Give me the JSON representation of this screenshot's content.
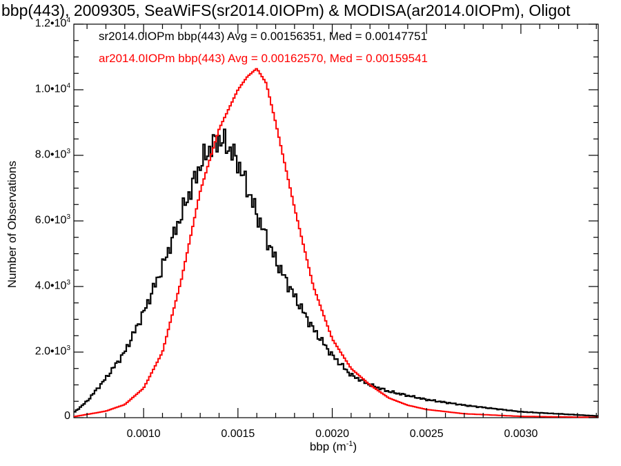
{
  "chart_data": {
    "type": "line",
    "title": "bbp(443), 2009305, SeaWiFS(sr2014.0IOPm) & MODISA(ar2014.0IOPm), Oligot",
    "xlabel_text": "bbp (m",
    "xlabel_sup": "-1",
    "xlabel_close": ")",
    "ylabel": "Number of Observations",
    "xlim": [
      0.00063,
      0.00341
    ],
    "ylim": [
      0,
      12000
    ],
    "grid": false,
    "legend_placement": "top-left",
    "x_ticks": [
      "0.0010",
      "0.0015",
      "0.0020",
      "0.0025",
      "0.0030"
    ],
    "x_tick_values": [
      0.001,
      0.0015,
      0.002,
      0.0025,
      0.003
    ],
    "y_ticks": [
      {
        "value": 0,
        "base": "0",
        "exp": ""
      },
      {
        "value": 2000,
        "base": "2.0•10",
        "exp": "3"
      },
      {
        "value": 4000,
        "base": "4.0•10",
        "exp": "3"
      },
      {
        "value": 6000,
        "base": "6.0•10",
        "exp": "3"
      },
      {
        "value": 8000,
        "base": "8.0•10",
        "exp": "3"
      },
      {
        "value": 10000,
        "base": "1.0•10",
        "exp": "4"
      },
      {
        "value": 12000,
        "base": "1.2•10",
        "exp": "4"
      }
    ],
    "series": [
      {
        "name": "sr2014.0IOPm bbp(443) Avg = 0.00156351, Med = 0.00147751",
        "color": "#000000",
        "x": [
          0.00063,
          0.0007,
          0.0008,
          0.0009,
          0.001,
          0.0011,
          0.0012,
          0.0013,
          0.00135,
          0.0014,
          0.00145,
          0.0015,
          0.0016,
          0.0017,
          0.0018,
          0.0019,
          0.002,
          0.0021,
          0.0022,
          0.0023,
          0.0025,
          0.0027,
          0.003,
          0.00341
        ],
        "values": [
          150,
          500,
          1200,
          2000,
          3200,
          4600,
          6200,
          7700,
          8200,
          8500,
          8250,
          7800,
          6200,
          4800,
          3700,
          2700,
          1900,
          1300,
          1000,
          800,
          550,
          380,
          180,
          50
        ]
      },
      {
        "name": "ar2014.0IOPm bbp(443) Avg = 0.00162570, Med = 0.00159541",
        "color": "#ff0000",
        "x": [
          0.00063,
          0.0008,
          0.0009,
          0.001,
          0.0011,
          0.0012,
          0.0013,
          0.0014,
          0.0015,
          0.00155,
          0.0016,
          0.00165,
          0.0017,
          0.0018,
          0.0019,
          0.002,
          0.0021,
          0.0022,
          0.0023,
          0.0024,
          0.0025,
          0.0027,
          0.003,
          0.00341
        ],
        "values": [
          30,
          200,
          400,
          900,
          2000,
          4200,
          6900,
          8800,
          10000,
          10400,
          10650,
          10200,
          9000,
          6400,
          4000,
          2400,
          1500,
          1000,
          600,
          380,
          250,
          120,
          40,
          10
        ]
      }
    ]
  }
}
